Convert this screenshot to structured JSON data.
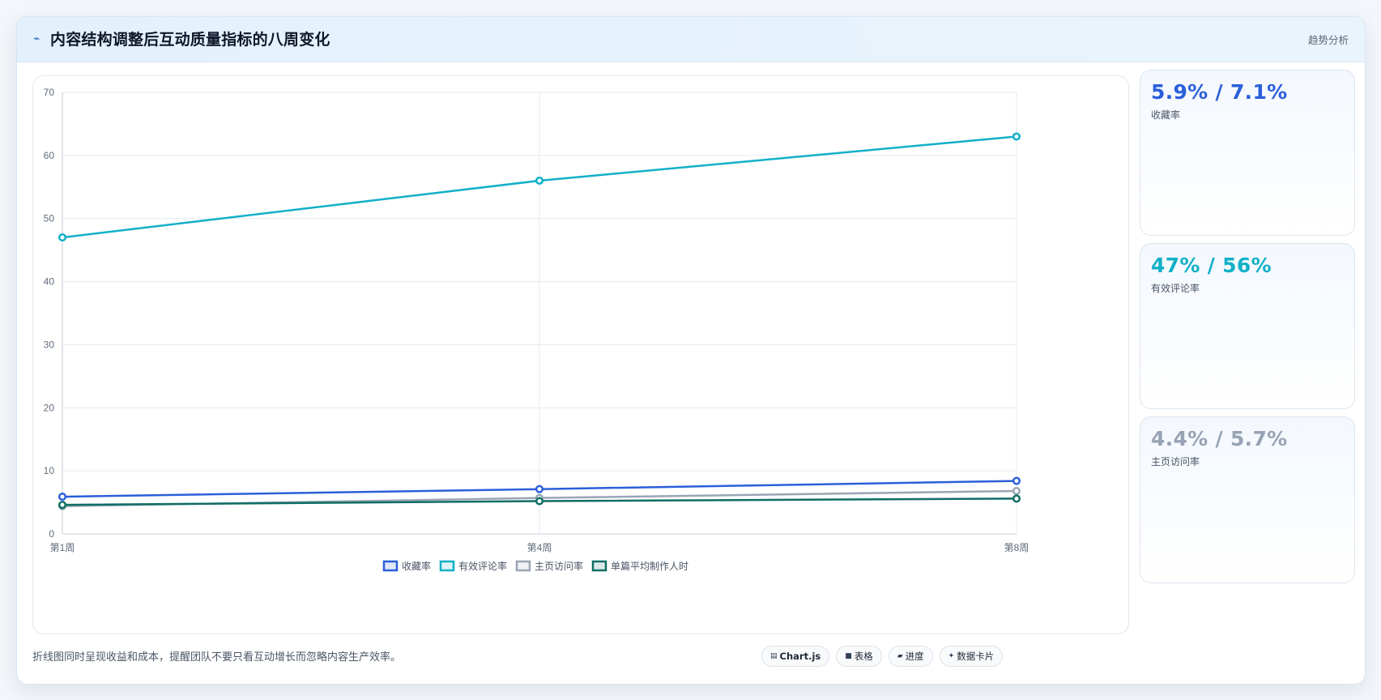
{
  "header": {
    "icon": "trend-line-icon",
    "title": "内容结构调整后互动质量指标的八周变化",
    "tag": "趋势分析"
  },
  "chart_data": {
    "type": "line",
    "title": "",
    "xlabel": "",
    "ylabel": "",
    "categories": [
      "第1周",
      "第4周",
      "第8周"
    ],
    "ylim": [
      0,
      70
    ],
    "yticks": [
      0,
      10,
      20,
      30,
      40,
      50,
      60,
      70
    ],
    "grid": true,
    "legend_position": "bottom",
    "series": [
      {
        "name": "收藏率",
        "values": [
          5.9,
          7.1,
          8.4
        ],
        "color": "#2b5fd9"
      },
      {
        "name": "有效评论率",
        "values": [
          47,
          56,
          63
        ],
        "color": "#12b0c8"
      },
      {
        "name": "主页访问率",
        "values": [
          4.4,
          5.7,
          6.8
        ],
        "color": "#9aa5b5"
      },
      {
        "name": "单篇平均制作人时",
        "values": [
          4.6,
          5.2,
          5.6
        ],
        "color": "#0f6e64"
      }
    ]
  },
  "side_cards": [
    {
      "value": "5.9% / 7.1%",
      "label": "收藏率",
      "color": "#2b5fd9"
    },
    {
      "value": "47% / 56%",
      "label": "有效评论率",
      "color": "#12b0c8"
    },
    {
      "value": "4.4% / 5.7%",
      "label": "主页访问率",
      "color": "#97a3b4"
    }
  ],
  "footer": {
    "note": "折线图同时呈现收益和成本，提醒团队不要只看互动增长而忽略内容生产效率。",
    "chips": [
      {
        "icon": "chart-icon",
        "glyph": "▤",
        "label": "Chart.js"
      },
      {
        "icon": "table-icon",
        "glyph": "■",
        "label": "表格"
      },
      {
        "icon": "progress-icon",
        "glyph": "▰",
        "label": "进度"
      },
      {
        "icon": "data-card-icon",
        "glyph": "✦",
        "label": "数据卡片"
      }
    ]
  }
}
